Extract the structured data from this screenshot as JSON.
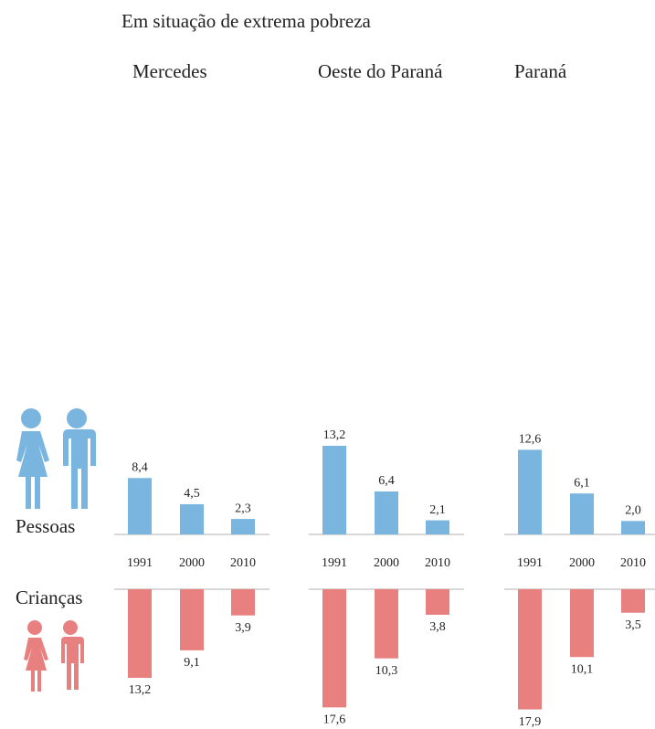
{
  "title": "Em situação de extrema pobreza",
  "chart_data": [
    {
      "type": "bar",
      "title": "Mercedes",
      "categories": [
        "1991",
        "2000",
        "2010"
      ],
      "series": [
        {
          "name": "Pessoas",
          "color": "#7ab5e0",
          "values": [
            8.4,
            4.5,
            2.3
          ],
          "value_labels": [
            "8,4",
            "4,5",
            "2,3"
          ]
        },
        {
          "name": "Crianças",
          "color": "#e88080",
          "values": [
            13.2,
            9.1,
            3.9
          ],
          "value_labels": [
            "13,2",
            "9,1",
            "3,9"
          ]
        }
      ]
    },
    {
      "type": "bar",
      "title": "Oeste do Paraná",
      "categories": [
        "1991",
        "2000",
        "2010"
      ],
      "series": [
        {
          "color": "#7ab5e0",
          "values": [
            13.2,
            6.4,
            2.1
          ],
          "value_labels": [
            "13,2",
            "6,4",
            "2,1"
          ]
        },
        {
          "color": "#e88080",
          "values": [
            17.6,
            10.3,
            3.8
          ],
          "value_labels": [
            "17,6",
            "10,3",
            "3,8"
          ]
        }
      ]
    },
    {
      "type": "bar",
      "title": "Paraná",
      "categories": [
        "1991",
        "2000",
        "2010"
      ],
      "series": [
        {
          "color": "#7ab5e0",
          "values": [
            12.6,
            6.1,
            2.0
          ],
          "value_labels": [
            "12,6",
            "6,1",
            "2,0"
          ]
        },
        {
          "color": "#e88080",
          "values": [
            17.9,
            10.1,
            3.5
          ],
          "value_labels": [
            "17,9",
            "10,1",
            "3,5"
          ]
        }
      ]
    }
  ]
}
